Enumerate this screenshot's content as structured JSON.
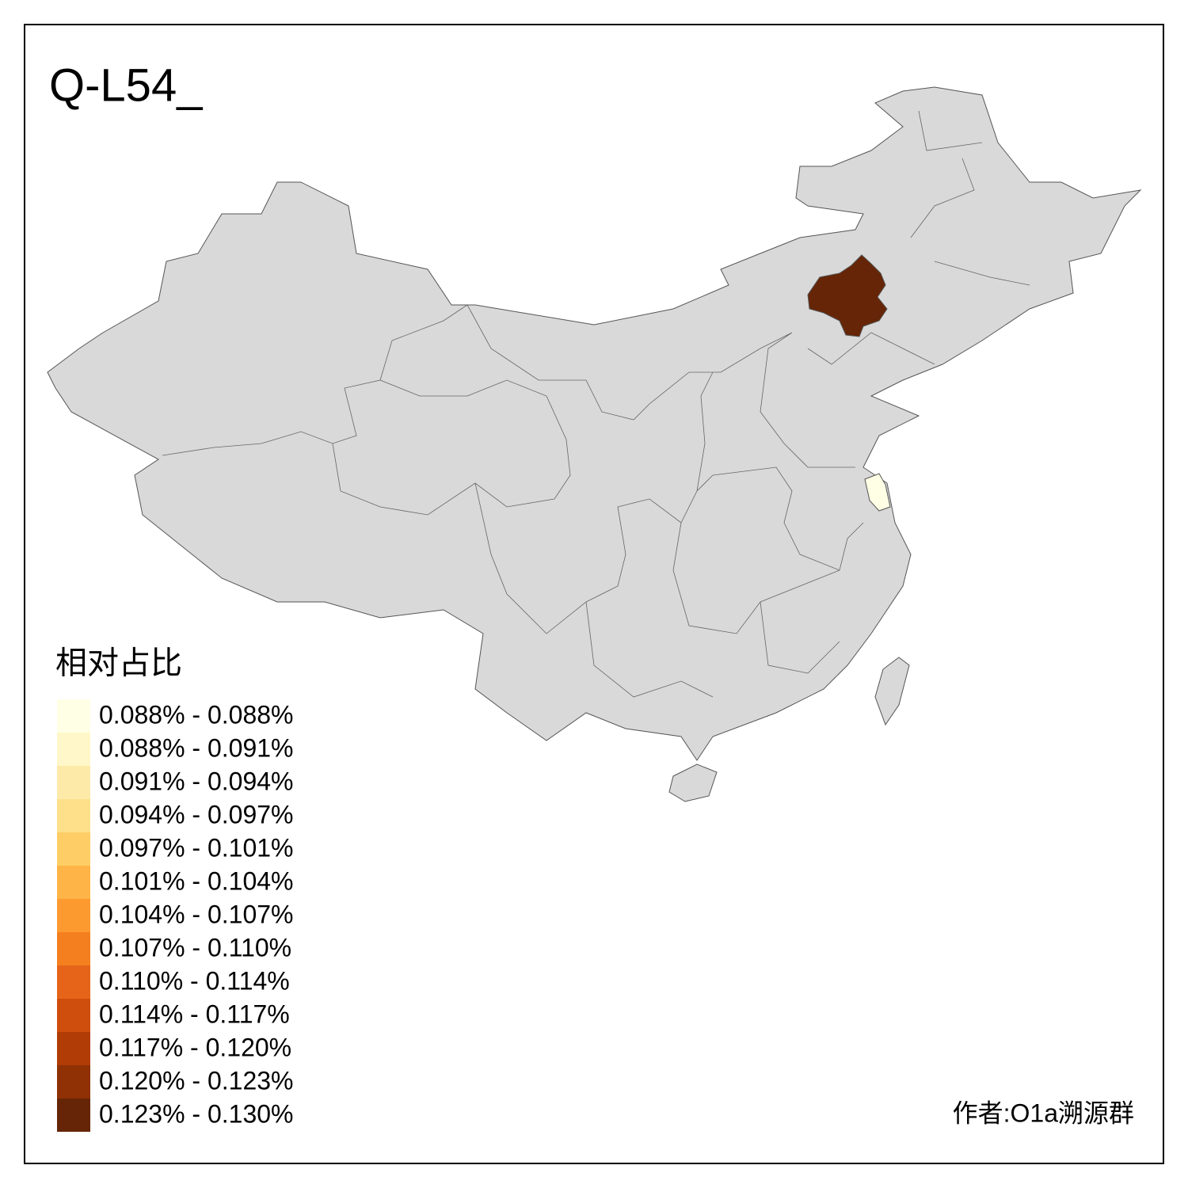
{
  "title": "Q-L54_",
  "legend": {
    "title": "相对占比",
    "items": [
      {
        "label": "0.088% - 0.088%",
        "color": "#ffffe5"
      },
      {
        "label": "0.088% - 0.091%",
        "color": "#fff7c9"
      },
      {
        "label": "0.091% - 0.094%",
        "color": "#feeaa8"
      },
      {
        "label": "0.094% - 0.097%",
        "color": "#fee08b"
      },
      {
        "label": "0.097% - 0.101%",
        "color": "#fecd66"
      },
      {
        "label": "0.101% - 0.104%",
        "color": "#feb446"
      },
      {
        "label": "0.104% - 0.107%",
        "color": "#fd9a2f"
      },
      {
        "label": "0.107% - 0.110%",
        "color": "#f47f1f"
      },
      {
        "label": "0.110% - 0.114%",
        "color": "#e5641a"
      },
      {
        "label": "0.114% - 0.117%",
        "color": "#cf4d0d"
      },
      {
        "label": "0.117% - 0.120%",
        "color": "#b13c06"
      },
      {
        "label": "0.120% - 0.123%",
        "color": "#8f3104"
      },
      {
        "label": "0.123% - 0.130%",
        "color": "#662506"
      }
    ]
  },
  "author": "作者:O1a溯源群"
}
